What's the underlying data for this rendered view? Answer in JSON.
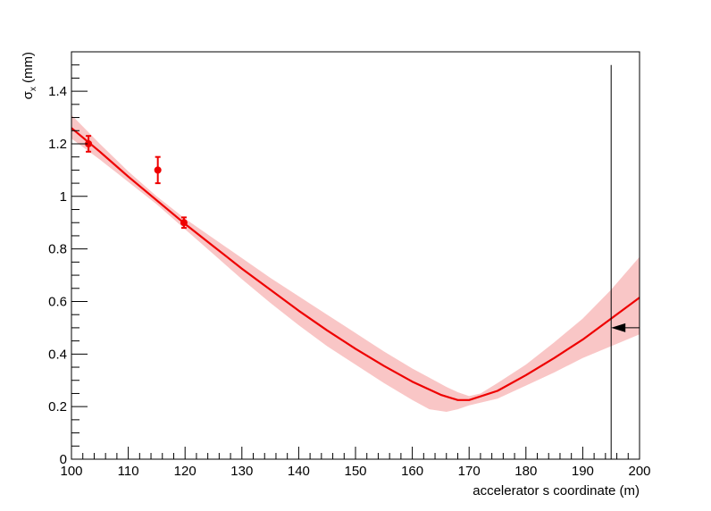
{
  "chart_data": {
    "type": "scatter",
    "title": "",
    "xlabel": "accelerator s coordinate (m)",
    "ylabel": {
      "main": "σ",
      "sub": "x",
      "unit": " (mm)"
    },
    "xlim": [
      100,
      200
    ],
    "ylim": [
      0,
      1.55
    ],
    "grid": false,
    "legend": "none",
    "xticks": [
      100,
      110,
      120,
      130,
      140,
      150,
      160,
      170,
      180,
      190,
      200
    ],
    "yticks": [
      0,
      0.2,
      0.4,
      0.6,
      0.8,
      1,
      1.2,
      1.4
    ],
    "ytick_labels": [
      "0",
      "0.2",
      "0.4",
      "0.6",
      "0.8",
      "1",
      "1.2",
      "1.4"
    ],
    "measurements": [
      {
        "x": 103,
        "y": 1.2,
        "err": 0.03
      },
      {
        "x": 115.2,
        "y": 1.1,
        "err": 0.05
      },
      {
        "x": 119.8,
        "y": 0.9,
        "err": 0.02
      }
    ],
    "fit_curve": {
      "x": [
        100,
        105,
        110,
        115,
        120,
        125,
        130,
        135,
        140,
        145,
        150,
        155,
        160,
        165,
        168,
        170,
        175,
        180,
        185,
        190,
        195,
        200
      ],
      "y": [
        1.26,
        1.17,
        1.075,
        0.985,
        0.895,
        0.81,
        0.725,
        0.645,
        0.565,
        0.49,
        0.42,
        0.355,
        0.295,
        0.245,
        0.225,
        0.225,
        0.26,
        0.32,
        0.385,
        0.455,
        0.535,
        0.615
      ]
    },
    "confidence_band": {
      "x": [
        100,
        105,
        110,
        115,
        120,
        125,
        130,
        135,
        140,
        145,
        150,
        155,
        160,
        163,
        166,
        168,
        170,
        172,
        175,
        180,
        185,
        190,
        195,
        200
      ],
      "upper": [
        1.31,
        1.2,
        1.095,
        1.0,
        0.915,
        0.84,
        0.765,
        0.69,
        0.62,
        0.55,
        0.48,
        0.41,
        0.345,
        0.31,
        0.275,
        0.255,
        0.24,
        0.25,
        0.29,
        0.36,
        0.445,
        0.535,
        0.645,
        0.77
      ],
      "lower": [
        1.22,
        1.14,
        1.055,
        0.97,
        0.875,
        0.78,
        0.685,
        0.595,
        0.51,
        0.43,
        0.36,
        0.29,
        0.225,
        0.19,
        0.18,
        0.19,
        0.205,
        0.215,
        0.23,
        0.28,
        0.33,
        0.385,
        0.43,
        0.475
      ]
    },
    "marker_line": {
      "x": 195,
      "y_top": 1.5
    },
    "arrow": {
      "x_from": 200,
      "x_to": 195,
      "y": 0.5
    },
    "colors": {
      "fit": "#ee0000",
      "band": "#f9c6c6",
      "points": "#ee0000",
      "axes": "#000000"
    }
  }
}
